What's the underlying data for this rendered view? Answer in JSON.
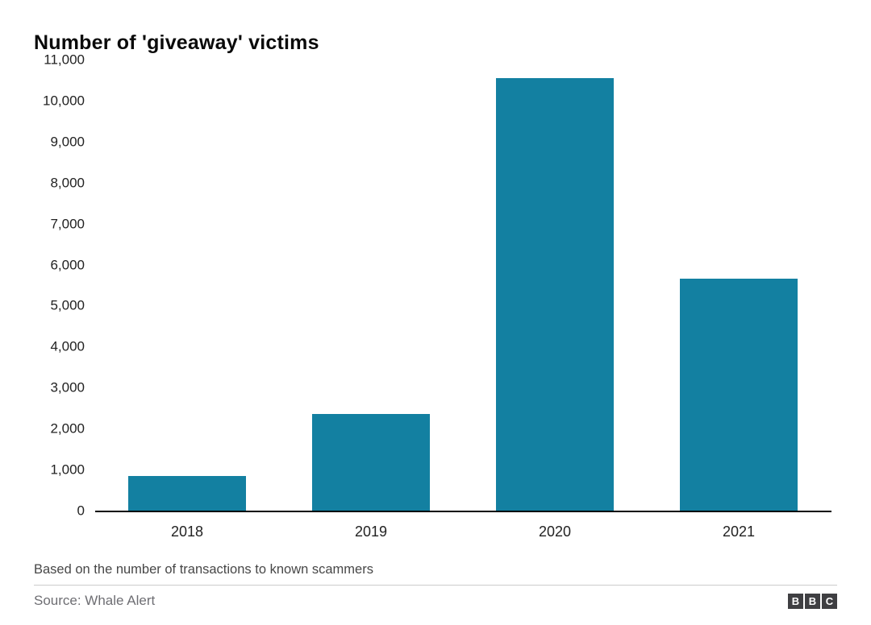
{
  "title": "Number of 'giveaway' victims",
  "chart_data": {
    "type": "bar",
    "title": "Number of 'giveaway' victims",
    "categories": [
      "2018",
      "2019",
      "2020",
      "2021"
    ],
    "values": [
      850,
      2350,
      10550,
      5650
    ],
    "xlabel": "",
    "ylabel": "",
    "ylim": [
      0,
      11000
    ],
    "ytick_step": 1000,
    "ytick_labels": [
      "0",
      "1,000",
      "2,000",
      "3,000",
      "4,000",
      "5,000",
      "6,000",
      "7,000",
      "8,000",
      "9,000",
      "10,000",
      "11,000"
    ],
    "bar_color": "#1380A1",
    "grid": false,
    "legend": false
  },
  "footnote": "Based on the number of transactions to known scammers",
  "source": "Source: Whale Alert",
  "logo": {
    "letters": [
      "B",
      "B",
      "C"
    ]
  },
  "colors": {
    "bar": "#1380A1",
    "axis_line": "#000000",
    "tick_text": "#222222",
    "footnote_text": "#474747",
    "source_text": "#6e6e73",
    "divider": "#cccccc",
    "logo_bg": "#3f3f42"
  }
}
